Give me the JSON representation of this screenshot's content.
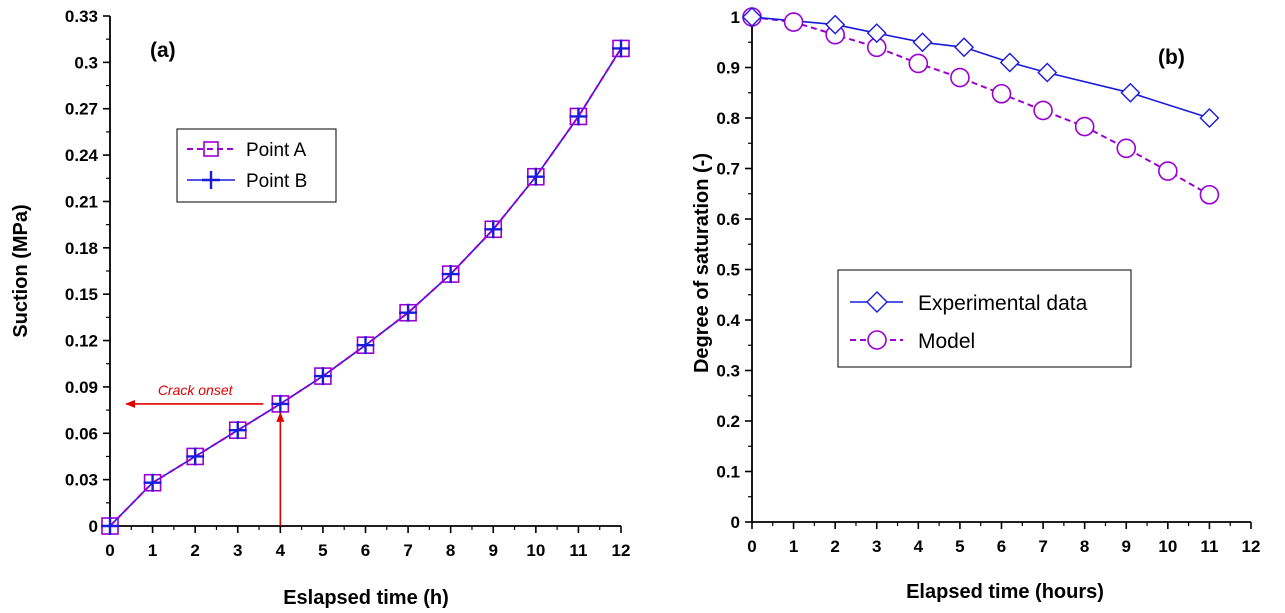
{
  "colors": {
    "purple": "#9b00d3",
    "blue": "#1a1adb",
    "red": "#e00000",
    "axis": "#000000"
  },
  "chart_data": [
    {
      "type": "line",
      "panel_label": "(a)",
      "xlabel": "Eslapsed time (h)",
      "ylabel": "Suction (MPa)",
      "xlim": [
        0,
        12
      ],
      "ylim": [
        0,
        0.33
      ],
      "xticks": [
        0,
        1,
        2,
        3,
        4,
        5,
        6,
        7,
        8,
        9,
        10,
        11,
        12
      ],
      "xtick_labels": [
        "0",
        "1",
        "2",
        "3",
        "4",
        "5",
        "6",
        "7",
        "8",
        "9",
        "10",
        "11",
        "12"
      ],
      "yticks": [
        0,
        0.03,
        0.06,
        0.09,
        0.12,
        0.15,
        0.18,
        0.21,
        0.24,
        0.27,
        0.3,
        0.33
      ],
      "ytick_labels": [
        "0",
        "0.03",
        "0.06",
        "0.09",
        "0.12",
        "0.15",
        "0.18",
        "0.21",
        "0.24",
        "0.27",
        "0.3",
        "0.33"
      ],
      "legend_position": "upper-left",
      "grid": false,
      "x": [
        0,
        1,
        2,
        3,
        4,
        5,
        6,
        7,
        8,
        9,
        10,
        11,
        12
      ],
      "series": [
        {
          "name": "Point A",
          "style": "dashed",
          "marker": "square",
          "color": "#9b00d3",
          "values": [
            0,
            0.028,
            0.045,
            0.062,
            0.079,
            0.097,
            0.117,
            0.138,
            0.163,
            0.192,
            0.226,
            0.265,
            0.309
          ]
        },
        {
          "name": "Point B",
          "style": "solid",
          "marker": "plus",
          "color": "#1a1adb",
          "values": [
            0,
            0.028,
            0.045,
            0.062,
            0.079,
            0.097,
            0.117,
            0.138,
            0.163,
            0.192,
            0.226,
            0.265,
            0.309
          ]
        }
      ],
      "annotation": {
        "text": "Crack onset",
        "x": 4,
        "y": 0.079,
        "color": "#e00000"
      }
    },
    {
      "type": "line",
      "panel_label": "(b)",
      "xlabel": "Elapsed time (hours)",
      "ylabel": "Degree of saturation (-)",
      "xlim": [
        0,
        12
      ],
      "ylim": [
        0,
        1
      ],
      "xticks": [
        0,
        1,
        2,
        3,
        4,
        5,
        6,
        7,
        8,
        9,
        10,
        11,
        12
      ],
      "xtick_labels": [
        "0",
        "1",
        "2",
        "3",
        "4",
        "5",
        "6",
        "7",
        "8",
        "9",
        "10",
        "11",
        "12"
      ],
      "yticks": [
        0,
        0.1,
        0.2,
        0.3,
        0.4,
        0.5,
        0.6,
        0.7,
        0.8,
        0.9,
        1
      ],
      "ytick_labels": [
        "0",
        "0.1",
        "0.2",
        "0.3",
        "0.4",
        "0.5",
        "0.6",
        "0.7",
        "0.8",
        "0.9",
        "1"
      ],
      "legend_position": "center-left",
      "grid": false,
      "series": [
        {
          "name": "Experimental data",
          "style": "solid",
          "marker": "diamond",
          "color": "#1a1adb",
          "x": [
            0,
            2,
            3,
            4.1,
            5.1,
            6.2,
            7.1,
            9.1,
            11
          ],
          "values": [
            1,
            0.985,
            0.968,
            0.95,
            0.94,
            0.91,
            0.89,
            0.85,
            0.8
          ]
        },
        {
          "name": "Model",
          "style": "dashed",
          "marker": "circle",
          "color": "#9b00d3",
          "x": [
            0,
            1,
            2,
            3,
            4,
            5,
            6,
            7,
            8,
            9,
            10,
            11
          ],
          "values": [
            1,
            0.99,
            0.965,
            0.94,
            0.908,
            0.88,
            0.848,
            0.815,
            0.783,
            0.74,
            0.695,
            0.648
          ]
        }
      ]
    }
  ]
}
